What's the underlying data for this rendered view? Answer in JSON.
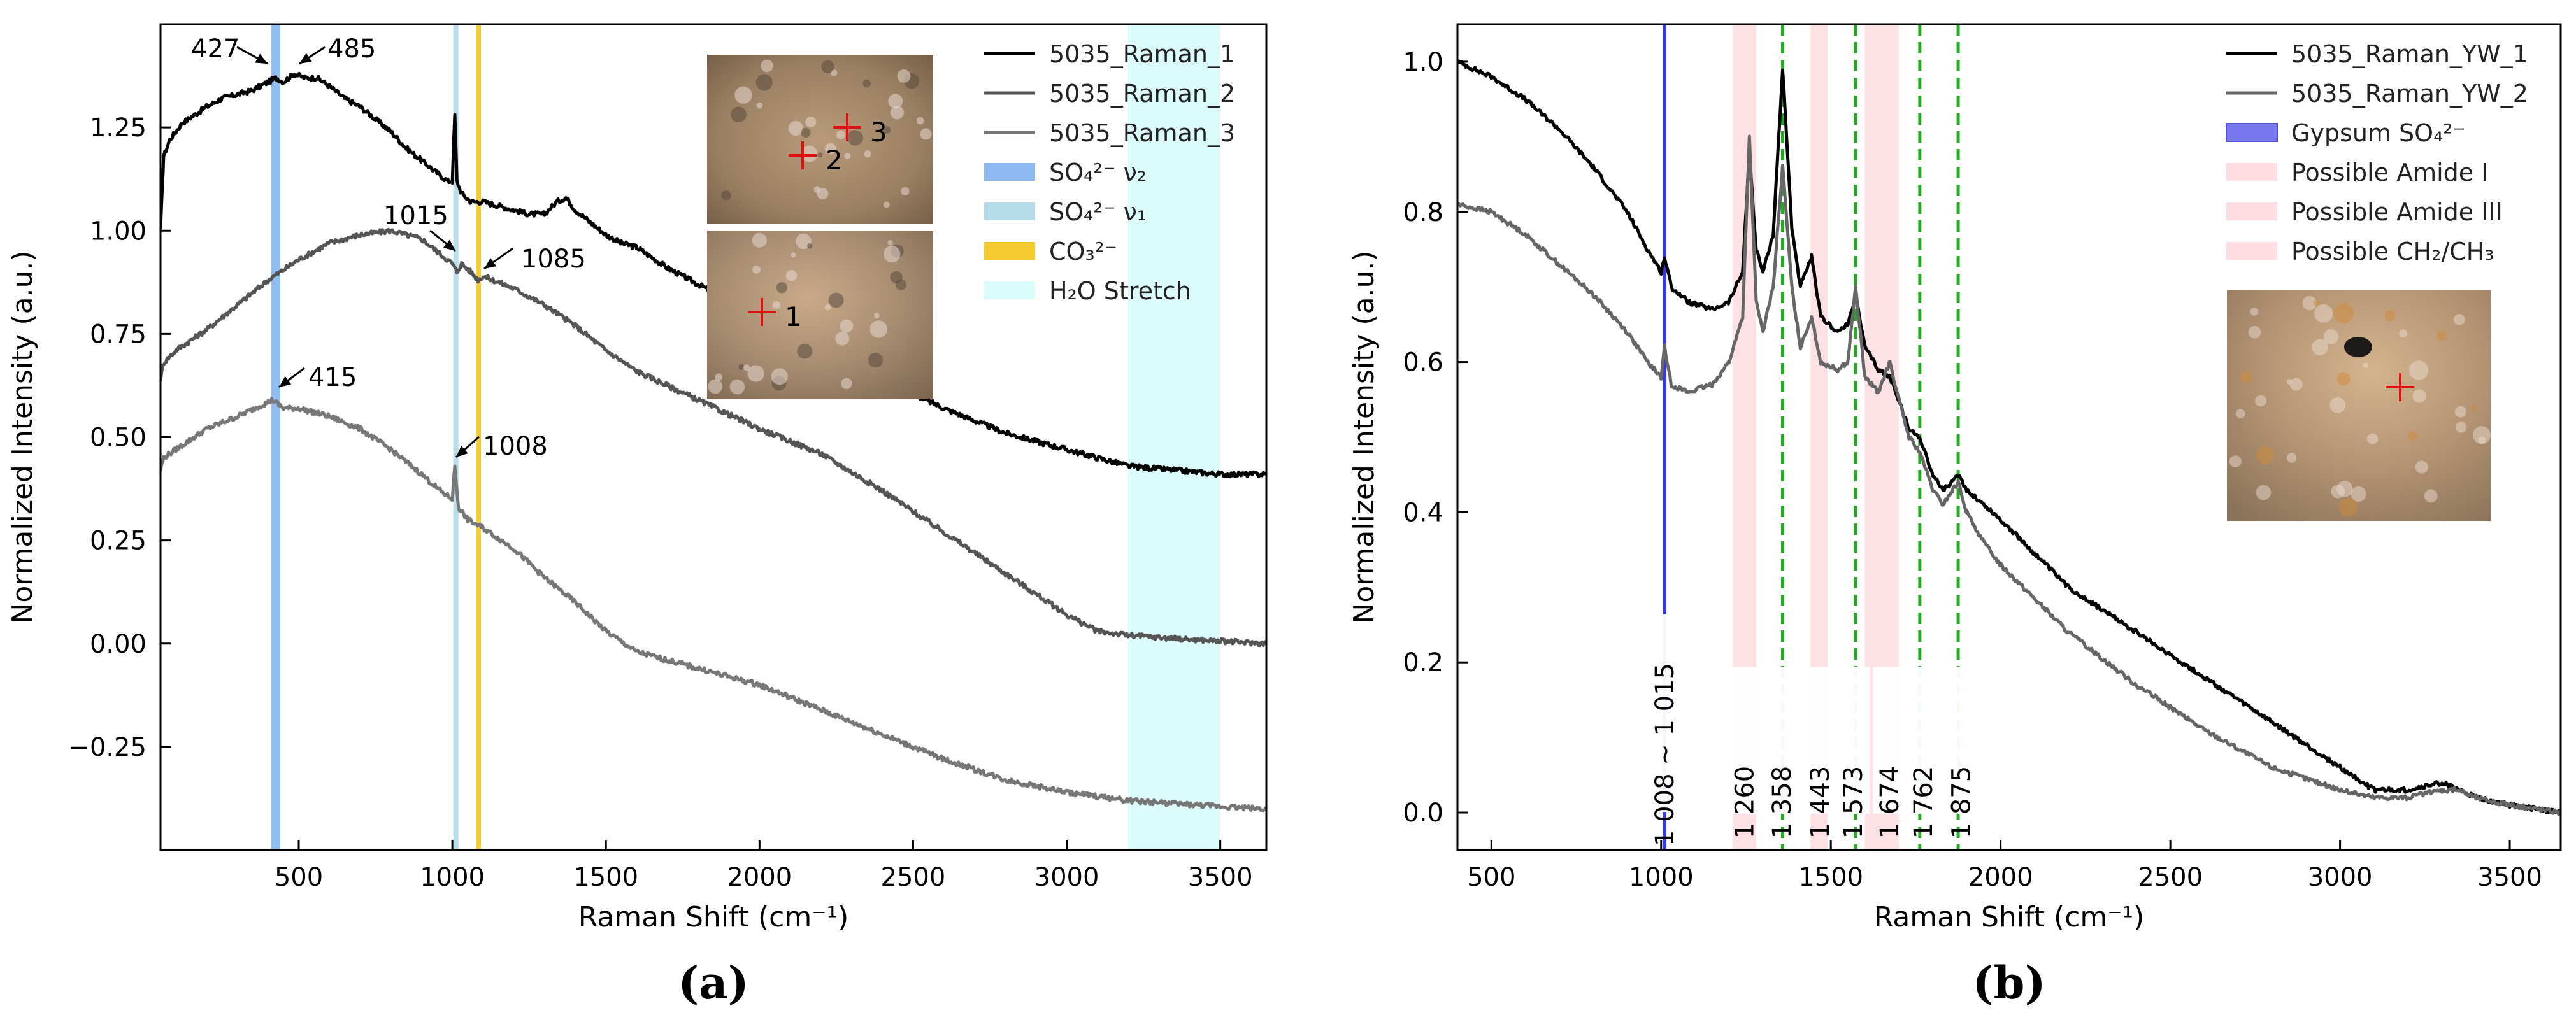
{
  "chart_data": [
    {
      "type": "line",
      "panel_label": "(a)",
      "xlabel": "Raman Shift (cm⁻¹)",
      "ylabel": "Normalized Intensity (a.u.)",
      "xlim": [
        50,
        3650
      ],
      "ylim": [
        -0.5,
        1.5
      ],
      "xticks": [
        500,
        1000,
        1500,
        2000,
        2500,
        3000,
        3500
      ],
      "yticks": [
        -0.25,
        0.0,
        0.25,
        0.5,
        0.75,
        1.0,
        1.25
      ],
      "ytick_labels": [
        "−0.25",
        "0.00",
        "0.25",
        "0.50",
        "0.75",
        "1.00",
        "1.25"
      ],
      "grid": false,
      "legend_position": "top-right",
      "series": [
        {
          "name": "5035_Raman_1",
          "color": "#000000",
          "x": [
            50,
            60,
            80,
            120,
            160,
            200,
            250,
            300,
            350,
            400,
            427,
            450,
            485,
            520,
            560,
            600,
            650,
            700,
            750,
            800,
            850,
            900,
            950,
            985,
            1000,
            1008,
            1015,
            1030,
            1060,
            1100,
            1150,
            1200,
            1250,
            1300,
            1340,
            1370,
            1400,
            1450,
            1500,
            1550,
            1600,
            1700,
            1800,
            2000,
            2200,
            2400,
            2600,
            2800,
            3000,
            3200,
            3350,
            3500,
            3650
          ],
          "y": [
            1.0,
            1.18,
            1.22,
            1.26,
            1.28,
            1.3,
            1.32,
            1.33,
            1.34,
            1.36,
            1.37,
            1.36,
            1.38,
            1.37,
            1.37,
            1.35,
            1.32,
            1.3,
            1.27,
            1.24,
            1.2,
            1.17,
            1.14,
            1.12,
            1.12,
            1.28,
            1.12,
            1.09,
            1.07,
            1.07,
            1.06,
            1.05,
            1.04,
            1.04,
            1.07,
            1.08,
            1.05,
            1.02,
            0.99,
            0.97,
            0.96,
            0.91,
            0.87,
            0.79,
            0.71,
            0.64,
            0.57,
            0.51,
            0.47,
            0.43,
            0.42,
            0.41,
            0.41
          ]
        },
        {
          "name": "5035_Raman_2",
          "color": "#555555",
          "x": [
            50,
            60,
            100,
            200,
            300,
            400,
            500,
            600,
            700,
            800,
            900,
            950,
            1000,
            1015,
            1030,
            1060,
            1085,
            1100,
            1200,
            1300,
            1400,
            1500,
            1600,
            1800,
            2000,
            2200,
            2400,
            2600,
            2800,
            3000,
            3100,
            3200,
            3400,
            3650
          ],
          "y": [
            0.64,
            0.68,
            0.71,
            0.76,
            0.82,
            0.88,
            0.93,
            0.97,
            0.99,
            1.0,
            0.98,
            0.95,
            0.92,
            0.9,
            0.92,
            0.9,
            0.88,
            0.89,
            0.86,
            0.82,
            0.77,
            0.71,
            0.66,
            0.59,
            0.52,
            0.46,
            0.37,
            0.27,
            0.17,
            0.07,
            0.03,
            0.02,
            0.01,
            0.0
          ]
        },
        {
          "name": "5035_Raman_3",
          "color": "#777777",
          "x": [
            50,
            60,
            100,
            200,
            300,
            415,
            450,
            500,
            600,
            700,
            800,
            900,
            960,
            1000,
            1008,
            1020,
            1050,
            1100,
            1200,
            1300,
            1400,
            1500,
            1600,
            1800,
            2000,
            2200,
            2400,
            2600,
            2800,
            3000,
            3200,
            3400,
            3650
          ],
          "y": [
            0.42,
            0.45,
            0.47,
            0.52,
            0.55,
            0.59,
            0.57,
            0.57,
            0.55,
            0.52,
            0.47,
            0.41,
            0.37,
            0.35,
            0.43,
            0.33,
            0.3,
            0.28,
            0.23,
            0.16,
            0.1,
            0.03,
            -0.02,
            -0.06,
            -0.1,
            -0.16,
            -0.22,
            -0.28,
            -0.33,
            -0.36,
            -0.38,
            -0.39,
            -0.4
          ]
        }
      ],
      "shaded_bands": [
        {
          "name": "SO₄²⁻ ν₂",
          "from": 410,
          "to": 440,
          "color": "#7fb2ee"
        },
        {
          "name": "SO₄²⁻ ν₁",
          "from": 1003,
          "to": 1020,
          "color": "#add8e6"
        },
        {
          "name": "CO₃²⁻",
          "from": 1078,
          "to": 1093,
          "color": "#f5c518"
        },
        {
          "name": "H₂O Stretch",
          "from": 3200,
          "to": 3500,
          "color": "#d6fbfb"
        }
      ],
      "annotations": [
        {
          "text": "427",
          "x": 427,
          "y": 1.37
        },
        {
          "text": "485",
          "x": 485,
          "y": 1.38
        },
        {
          "text": "1015",
          "x": 1015,
          "y": 0.9
        },
        {
          "text": "1085",
          "x": 1085,
          "y": 0.9
        },
        {
          "text": "415",
          "x": 415,
          "y": 0.6
        },
        {
          "text": "1008",
          "x": 1008,
          "y": 0.44
        }
      ],
      "inset_markers": [
        "2",
        "3",
        "1"
      ]
    },
    {
      "type": "line",
      "panel_label": "(b)",
      "xlabel": "Raman Shift (cm⁻¹)",
      "ylabel": "Normalized Intensity (a.u.)",
      "xlim": [
        400,
        3650
      ],
      "ylim": [
        -0.05,
        1.05
      ],
      "xticks": [
        500,
        1000,
        1500,
        2000,
        2500,
        3000,
        3500
      ],
      "yticks": [
        0.0,
        0.2,
        0.4,
        0.6,
        0.8,
        1.0
      ],
      "ytick_labels": [
        "0.0",
        "0.2",
        "0.4",
        "0.6",
        "0.8",
        "1.0"
      ],
      "grid": false,
      "legend_position": "top-right",
      "series": [
        {
          "name": "5035_Raman_YW_1",
          "color": "#000000",
          "x": [
            400,
            500,
            600,
            700,
            800,
            900,
            960,
            1000,
            1010,
            1030,
            1080,
            1150,
            1200,
            1240,
            1260,
            1280,
            1300,
            1330,
            1358,
            1385,
            1410,
            1443,
            1470,
            1520,
            1550,
            1573,
            1600,
            1640,
            1674,
            1700,
            1730,
            1762,
            1800,
            1830,
            1860,
            1875,
            1900,
            1950,
            2000,
            2200,
            2400,
            2600,
            2800,
            3000,
            3100,
            3200,
            3300,
            3350,
            3400,
            3500,
            3650
          ],
          "y": [
            1.0,
            0.98,
            0.95,
            0.91,
            0.86,
            0.8,
            0.75,
            0.72,
            0.74,
            0.7,
            0.68,
            0.67,
            0.68,
            0.72,
            0.88,
            0.75,
            0.72,
            0.77,
            0.99,
            0.78,
            0.7,
            0.74,
            0.66,
            0.64,
            0.65,
            0.69,
            0.62,
            0.59,
            0.58,
            0.55,
            0.51,
            0.5,
            0.45,
            0.43,
            0.44,
            0.45,
            0.43,
            0.41,
            0.39,
            0.3,
            0.24,
            0.18,
            0.12,
            0.06,
            0.03,
            0.03,
            0.04,
            0.03,
            0.02,
            0.01,
            0.0
          ]
        },
        {
          "name": "5035_Raman_YW_2",
          "color": "#666666",
          "x": [
            400,
            500,
            600,
            700,
            800,
            900,
            960,
            1000,
            1010,
            1030,
            1080,
            1150,
            1200,
            1240,
            1260,
            1280,
            1300,
            1330,
            1358,
            1385,
            1410,
            1443,
            1470,
            1520,
            1550,
            1573,
            1600,
            1640,
            1674,
            1700,
            1730,
            1762,
            1800,
            1830,
            1860,
            1875,
            1900,
            1950,
            2000,
            2200,
            2400,
            2600,
            2800,
            3000,
            3100,
            3200,
            3300,
            3350,
            3400,
            3500,
            3650
          ],
          "y": [
            0.81,
            0.8,
            0.77,
            0.73,
            0.69,
            0.64,
            0.6,
            0.58,
            0.62,
            0.57,
            0.56,
            0.57,
            0.6,
            0.66,
            0.9,
            0.68,
            0.64,
            0.7,
            0.86,
            0.7,
            0.62,
            0.66,
            0.6,
            0.59,
            0.6,
            0.7,
            0.58,
            0.56,
            0.6,
            0.55,
            0.5,
            0.48,
            0.43,
            0.41,
            0.43,
            0.44,
            0.4,
            0.36,
            0.33,
            0.24,
            0.17,
            0.11,
            0.06,
            0.03,
            0.02,
            0.02,
            0.03,
            0.03,
            0.02,
            0.01,
            0.0
          ]
        }
      ],
      "shaded_bands": [
        {
          "name": "Possible Amide I",
          "from": 1210,
          "to": 1280,
          "color": "#fdd9de"
        },
        {
          "name": "Possible Amide III",
          "from": 1440,
          "to": 1490,
          "color": "#fdd9de"
        },
        {
          "name": "Possible CH₂/CH₃",
          "from": 1600,
          "to": 1700,
          "color": "#fdd9de"
        }
      ],
      "vertical_lines": [
        {
          "name": "Gypsum SO₄²⁻",
          "x": 1010,
          "color": "#3a3ad6",
          "style": "solid"
        },
        {
          "x": 1358,
          "color": "#22aa22",
          "style": "dashed"
        },
        {
          "x": 1573,
          "color": "#22aa22",
          "style": "dashed"
        },
        {
          "x": 1762,
          "color": "#22aa22",
          "style": "dashed"
        },
        {
          "x": 1875,
          "color": "#22aa22",
          "style": "dashed"
        }
      ],
      "peak_labels": [
        {
          "text": "1 008 ~ 1 015",
          "x": 1010
        },
        {
          "text": "1 260",
          "x": 1245
        },
        {
          "text": "1 358",
          "x": 1355
        },
        {
          "text": "1 443",
          "x": 1468
        },
        {
          "text": "1 573",
          "x": 1565
        },
        {
          "text": "1 674",
          "x": 1672
        },
        {
          "text": "1 762",
          "x": 1772
        },
        {
          "text": "1 875",
          "x": 1883
        }
      ]
    }
  ]
}
